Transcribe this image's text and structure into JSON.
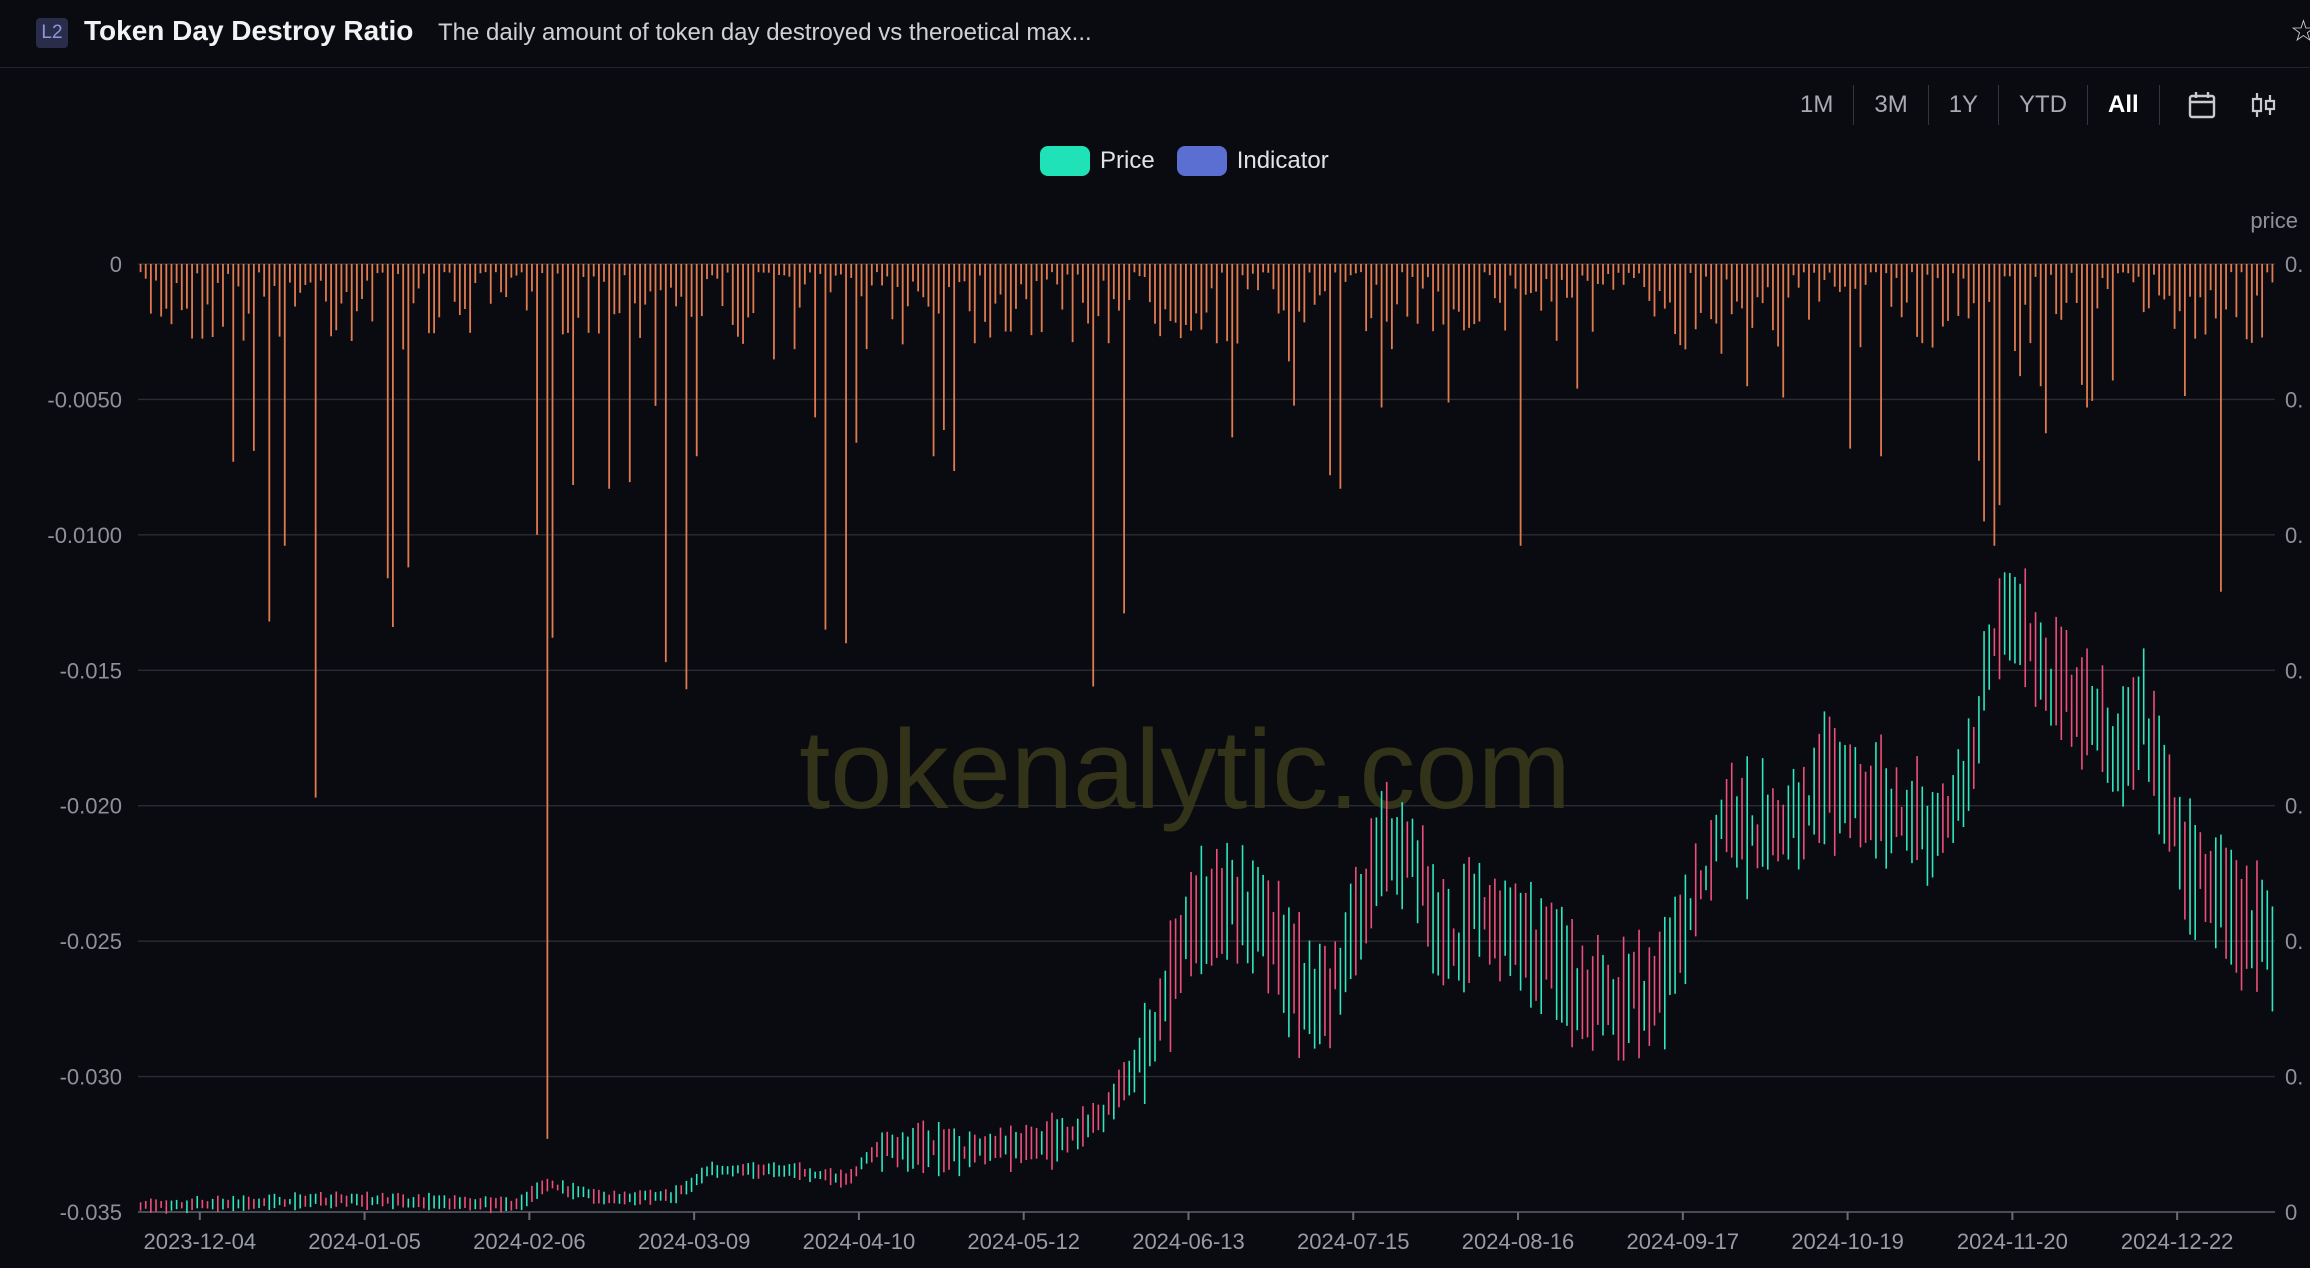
{
  "header": {
    "badge": "L2",
    "title": "Token Day Destroy Ratio",
    "subtitle": "The daily amount of token day destroyed vs theroetical max...",
    "star_icon": "star-icon"
  },
  "range_selector": {
    "options": [
      "1M",
      "3M",
      "1Y",
      "YTD",
      "All"
    ],
    "active": "All",
    "tools": [
      "calendar-icon",
      "candlestick-icon"
    ]
  },
  "colors": {
    "price_up": "#2ee6bf",
    "price_down": "#ee4f7a",
    "indicator_bar": "#e07a4f",
    "legend_price": "#1fe2b8",
    "legend_indicator": "#5a6fd1",
    "watermark": "#3a3a1a"
  },
  "watermark": "tokenalytic.com",
  "chart_data": {
    "type": "bar",
    "legend": [
      {
        "name": "Price",
        "color": "#1fe2b8"
      },
      {
        "name": "Indicator",
        "color": "#5a6fd1"
      }
    ],
    "legend_position": "top-center",
    "grid": true,
    "y_left": {
      "ticks": [
        "0",
        "-0.0050",
        "-0.0100",
        "-0.015",
        "-0.020",
        "-0.025",
        "-0.030",
        "-0.035"
      ],
      "range": [
        -0.035,
        0
      ]
    },
    "y_right": {
      "label": "price",
      "ticks": [
        "0.",
        "0.",
        "0.",
        "0.",
        "0.",
        "0.",
        "0.",
        "0"
      ]
    },
    "x_ticks": [
      "2023-12-04",
      "2024-01-05",
      "2024-02-06",
      "2024-03-09",
      "2024-04-10",
      "2024-05-12",
      "2024-06-13",
      "2024-07-15",
      "2024-08-16",
      "2024-09-17",
      "2024-10-19",
      "2024-11-20",
      "2024-12-22"
    ],
    "x_range": [
      "2023-11-22",
      "2025-01-10"
    ],
    "indicator_spikes": [
      {
        "date": "2023-12-10",
        "value": -0.0073
      },
      {
        "date": "2023-12-14",
        "value": -0.0069
      },
      {
        "date": "2023-12-17",
        "value": -0.0132
      },
      {
        "date": "2023-12-20",
        "value": -0.0104
      },
      {
        "date": "2023-12-26",
        "value": -0.0197
      },
      {
        "date": "2024-01-09",
        "value": -0.0116
      },
      {
        "date": "2024-01-10",
        "value": -0.0134
      },
      {
        "date": "2024-01-13",
        "value": -0.0112
      },
      {
        "date": "2024-02-07",
        "value": -0.01
      },
      {
        "date": "2024-02-09",
        "value": -0.0323
      },
      {
        "date": "2024-02-10",
        "value": -0.0138
      },
      {
        "date": "2024-02-21",
        "value": -0.0083
      },
      {
        "date": "2024-03-03",
        "value": -0.0147
      },
      {
        "date": "2024-03-07",
        "value": -0.0157
      },
      {
        "date": "2024-03-09",
        "value": -0.0071
      },
      {
        "date": "2024-04-03",
        "value": -0.0135
      },
      {
        "date": "2024-04-07",
        "value": -0.014
      },
      {
        "date": "2024-04-09",
        "value": -0.0066
      },
      {
        "date": "2024-04-24",
        "value": -0.0071
      },
      {
        "date": "2024-05-25",
        "value": -0.0156
      },
      {
        "date": "2024-05-31",
        "value": -0.0129
      },
      {
        "date": "2024-06-21",
        "value": -0.0064
      },
      {
        "date": "2024-07-10",
        "value": -0.0078
      },
      {
        "date": "2024-07-12",
        "value": -0.0083
      },
      {
        "date": "2024-07-20",
        "value": -0.0053
      },
      {
        "date": "2024-08-16",
        "value": -0.0104
      },
      {
        "date": "2024-08-27",
        "value": -0.0046
      },
      {
        "date": "2024-10-25",
        "value": -0.0071
      },
      {
        "date": "2024-11-14",
        "value": -0.0095
      },
      {
        "date": "2024-11-16",
        "value": -0.0104
      },
      {
        "date": "2024-11-17",
        "value": -0.0089
      },
      {
        "date": "2024-12-09",
        "value": -0.0043
      },
      {
        "date": "2024-12-30",
        "value": -0.0121
      }
    ],
    "price_series_note_free": true
  }
}
